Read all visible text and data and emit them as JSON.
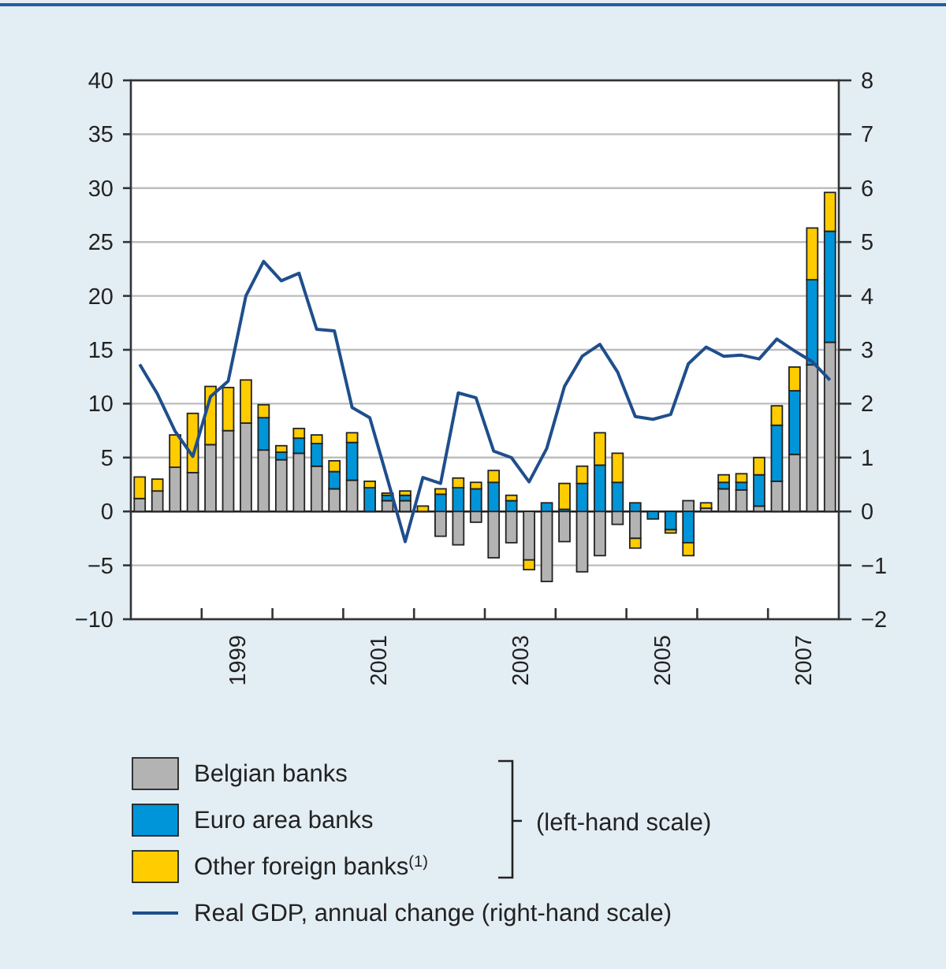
{
  "chart_data": {
    "type": "bar",
    "stacked": true,
    "x": [
      1998.125,
      1998.375,
      1998.625,
      1998.875,
      1999.125,
      1999.375,
      1999.625,
      1999.875,
      2000.125,
      2000.375,
      2000.625,
      2000.875,
      2001.125,
      2001.375,
      2001.625,
      2001.875,
      2002.125,
      2002.375,
      2002.625,
      2002.875,
      2003.125,
      2003.375,
      2003.625,
      2003.875,
      2004.125,
      2004.375,
      2004.625,
      2004.875,
      2005.125,
      2005.375,
      2005.625,
      2005.875,
      2006.125,
      2006.375,
      2006.625,
      2006.875,
      2007.125,
      2007.375,
      2007.625,
      2007.875
    ],
    "series": [
      {
        "name": "Belgian banks",
        "color": "#b3b3b3",
        "values": [
          1.2,
          1.9,
          4.1,
          3.6,
          6.2,
          7.5,
          8.2,
          5.7,
          4.8,
          5.4,
          4.2,
          2.1,
          2.9,
          null,
          1.0,
          1.0,
          null,
          -2.3,
          -3.1,
          -1.0,
          -4.3,
          -2.9,
          -4.5,
          -6.5,
          -2.8,
          -5.6,
          -4.1,
          -1.2,
          -2.5,
          null,
          null,
          1.0,
          0.3,
          2.1,
          2.0,
          0.5,
          2.8,
          5.3,
          13.6,
          15.7
        ]
      },
      {
        "name": "Euro area banks",
        "color": "#0095d9",
        "values": [
          0,
          0,
          0,
          0,
          0,
          0,
          0,
          3.0,
          0.7,
          1.4,
          2.1,
          1.6,
          3.5,
          2.2,
          0.5,
          0.5,
          0,
          1.6,
          2.2,
          2.1,
          2.7,
          1.0,
          0,
          0.8,
          0.2,
          2.6,
          4.3,
          2.7,
          0.8,
          -0.7,
          -1.7,
          -2.9,
          0,
          0.6,
          0.7,
          2.9,
          5.2,
          5.9,
          7.9,
          10.3
        ]
      },
      {
        "name": "Other foreign banks$^{(1)}$",
        "color": "#ffcc00",
        "values": [
          2.0,
          1.1,
          3.0,
          5.5,
          5.4,
          4.0,
          4.0,
          1.2,
          0.6,
          0.9,
          0.8,
          1.0,
          0.9,
          0.6,
          0.2,
          0.4,
          0.5,
          0.5,
          0.9,
          0.6,
          1.1,
          0.5,
          -0.9,
          0,
          2.4,
          1.6,
          3.0,
          2.7,
          -0.9,
          0,
          -0.3,
          -1.2,
          0.5,
          0.7,
          0.8,
          1.6,
          1.8,
          2.2,
          4.8,
          3.6
        ]
      },
      {
        "name": "Real GDP, annual change (right-hand scale)",
        "type": "line",
        "axis": "y2",
        "color": "#1f4e8c",
        "values": [
          2.73,
          2.18,
          1.49,
          1.02,
          2.13,
          2.42,
          4.0,
          4.64,
          4.28,
          4.42,
          3.38,
          3.35,
          1.93,
          1.74,
          0.6,
          -0.56,
          0.63,
          0.52,
          2.2,
          2.11,
          1.12,
          1.0,
          0.55,
          1.17,
          2.32,
          2.88,
          3.1,
          2.59,
          1.76,
          1.71,
          1.8,
          2.74,
          3.05,
          2.88,
          2.9,
          2.83,
          3.2,
          2.98,
          2.78,
          2.44
        ]
      }
    ],
    "xlim": [
      1998,
      2008
    ],
    "xticks": [
      {
        "value": 1999,
        "label": null
      },
      {
        "value": 1999.5,
        "label": "1999"
      },
      {
        "value": 2000,
        "label": null
      },
      {
        "value": 2001,
        "label": null
      },
      {
        "value": 2001.5,
        "label": "2001"
      },
      {
        "value": 2002,
        "label": null
      },
      {
        "value": 2003,
        "label": null
      },
      {
        "value": 2003.5,
        "label": "2003"
      },
      {
        "value": 2004,
        "label": null
      },
      {
        "value": 2005,
        "label": null
      },
      {
        "value": 2005.5,
        "label": "2005"
      },
      {
        "value": 2006,
        "label": null
      },
      {
        "value": 2007,
        "label": null
      },
      {
        "value": 2007.5,
        "label": "2007"
      }
    ],
    "ylim": [
      -10,
      40
    ],
    "yticks": [
      -10,
      -5,
      0,
      5,
      10,
      15,
      20,
      25,
      30,
      35,
      40
    ],
    "y2lim": [
      -2,
      8
    ],
    "y2ticks": [
      -2,
      -1,
      0,
      1,
      2,
      3,
      4,
      5,
      6,
      7,
      8
    ],
    "grid": "y",
    "legend": "bottom",
    "annotations": [
      "(left-hand scale)"
    ]
  }
}
